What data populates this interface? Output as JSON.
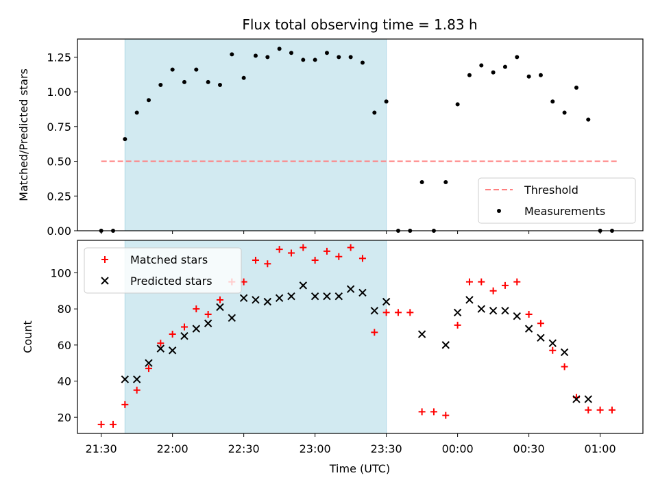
{
  "chart_data": {
    "title": "Flux total observing time = 1.83 h",
    "xlabel": "Time (UTC)",
    "x_tick_labels": [
      "21:30",
      "22:00",
      "22:30",
      "23:00",
      "23:30",
      "00:00",
      "00:30",
      "01:00"
    ],
    "x_ticks_minutes": [
      0,
      30,
      60,
      90,
      120,
      150,
      180,
      210
    ],
    "x_reference_time": "21:30",
    "xlim_minutes": [
      -10,
      228
    ],
    "shaded_interval": [
      "21:40",
      "23:30"
    ],
    "shaded_interval_minutes": [
      10,
      120
    ],
    "shade_color": "#add8e6",
    "panels": [
      {
        "type": "scatter",
        "ylabel": "Matched/Predicted stars",
        "ylim": [
          0,
          1.38
        ],
        "y_ticks": [
          0.0,
          0.25,
          0.5,
          0.75,
          1.0,
          1.25
        ],
        "y_tick_labels": [
          "0.00",
          "0.25",
          "0.50",
          "0.75",
          "1.00",
          "1.25"
        ],
        "threshold": {
          "name": "Threshold",
          "value": 0.5,
          "x_range_minutes": [
            0,
            217
          ],
          "color": "#ff7f7f"
        },
        "series": [
          {
            "name": "Measurements",
            "marker": "dot",
            "color": "#000000",
            "x_minutes": [
              0,
              5,
              10,
              15,
              20,
              25,
              30,
              35,
              40,
              45,
              50,
              55,
              60,
              65,
              70,
              75,
              80,
              85,
              90,
              95,
              100,
              105,
              110,
              115,
              120,
              125,
              130,
              135,
              140,
              145,
              150,
              155,
              160,
              165,
              170,
              175,
              180,
              185,
              190,
              195,
              200,
              205,
              210,
              215
            ],
            "y": [
              0.0,
              0.0,
              0.66,
              0.85,
              0.94,
              1.05,
              1.16,
              1.07,
              1.16,
              1.07,
              1.05,
              1.27,
              1.1,
              1.26,
              1.25,
              1.31,
              1.28,
              1.23,
              1.23,
              1.28,
              1.25,
              1.25,
              1.21,
              0.85,
              0.93,
              0.0,
              0.0,
              0.35,
              0.0,
              0.35,
              0.91,
              1.12,
              1.19,
              1.14,
              1.18,
              1.25,
              1.11,
              1.12,
              0.93,
              0.85,
              1.03,
              0.8,
              0.0,
              0.0
            ]
          }
        ],
        "legend": {
          "position": "lower right",
          "entries": [
            "Threshold",
            "Measurements"
          ]
        }
      },
      {
        "type": "scatter",
        "ylabel": "Count",
        "ylim": [
          11,
          118
        ],
        "y_ticks": [
          20,
          40,
          60,
          80,
          100
        ],
        "y_tick_labels": [
          "20",
          "40",
          "60",
          "80",
          "100"
        ],
        "series": [
          {
            "name": "Matched stars",
            "marker": "plus",
            "color": "#ff0000",
            "x_minutes": [
              0,
              5,
              10,
              15,
              20,
              25,
              30,
              35,
              40,
              45,
              50,
              55,
              60,
              65,
              70,
              75,
              80,
              85,
              90,
              95,
              100,
              105,
              110,
              115,
              120,
              125,
              130,
              135,
              140,
              145,
              150,
              155,
              160,
              165,
              170,
              175,
              180,
              185,
              190,
              195,
              200,
              205,
              210,
              215
            ],
            "y": [
              16,
              16,
              27,
              35,
              47,
              61,
              66,
              70,
              80,
              77,
              85,
              95,
              95,
              107,
              105,
              113,
              111,
              114,
              107,
              112,
              109,
              114,
              108,
              67,
              78,
              78,
              78,
              23,
              23,
              21,
              71,
              95,
              95,
              90,
              93,
              95,
              77,
              72,
              57,
              48,
              31,
              24,
              24,
              24
            ]
          },
          {
            "name": "Predicted stars",
            "marker": "x",
            "color": "#000000",
            "x_minutes": [
              10,
              15,
              20,
              25,
              30,
              35,
              40,
              45,
              50,
              55,
              60,
              65,
              70,
              75,
              80,
              85,
              90,
              95,
              100,
              105,
              110,
              115,
              120,
              135,
              145,
              150,
              155,
              160,
              165,
              170,
              175,
              180,
              185,
              190,
              195,
              200,
              205
            ],
            "y": [
              41,
              41,
              50,
              58,
              57,
              65,
              69,
              72,
              81,
              75,
              86,
              85,
              84,
              86,
              87,
              93,
              87,
              87,
              87,
              91,
              89,
              79,
              84,
              66,
              60,
              78,
              85,
              80,
              79,
              79,
              76,
              69,
              64,
              61,
              56,
              30,
              30
            ]
          }
        ],
        "legend": {
          "position": "upper left",
          "entries": [
            "Matched stars",
            "Predicted stars"
          ]
        }
      }
    ]
  }
}
